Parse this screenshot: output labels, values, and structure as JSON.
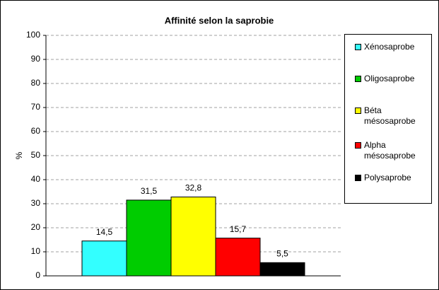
{
  "chart_data": {
    "type": "bar",
    "title": "Affinité selon la saprobie",
    "y_label": "%",
    "categories": [
      "Xénosaprobe",
      "Oligosaprobe",
      "Béta mésosaprobe",
      "Alpha mésosaprobe",
      "Polysaprobe"
    ],
    "values": [
      14.5,
      31.5,
      32.8,
      15.7,
      5.5
    ],
    "value_labels": [
      "14,5",
      "31,5",
      "32,8",
      "15,7",
      "5,5"
    ],
    "colors": [
      "#33ffff",
      "#00cc00",
      "#ffff00",
      "#ff0000",
      "#000000"
    ],
    "ylim": [
      0,
      100
    ],
    "yticks": [
      0,
      10,
      20,
      30,
      40,
      50,
      60,
      70,
      80,
      90,
      100
    ],
    "grid": true,
    "legend": "right"
  }
}
